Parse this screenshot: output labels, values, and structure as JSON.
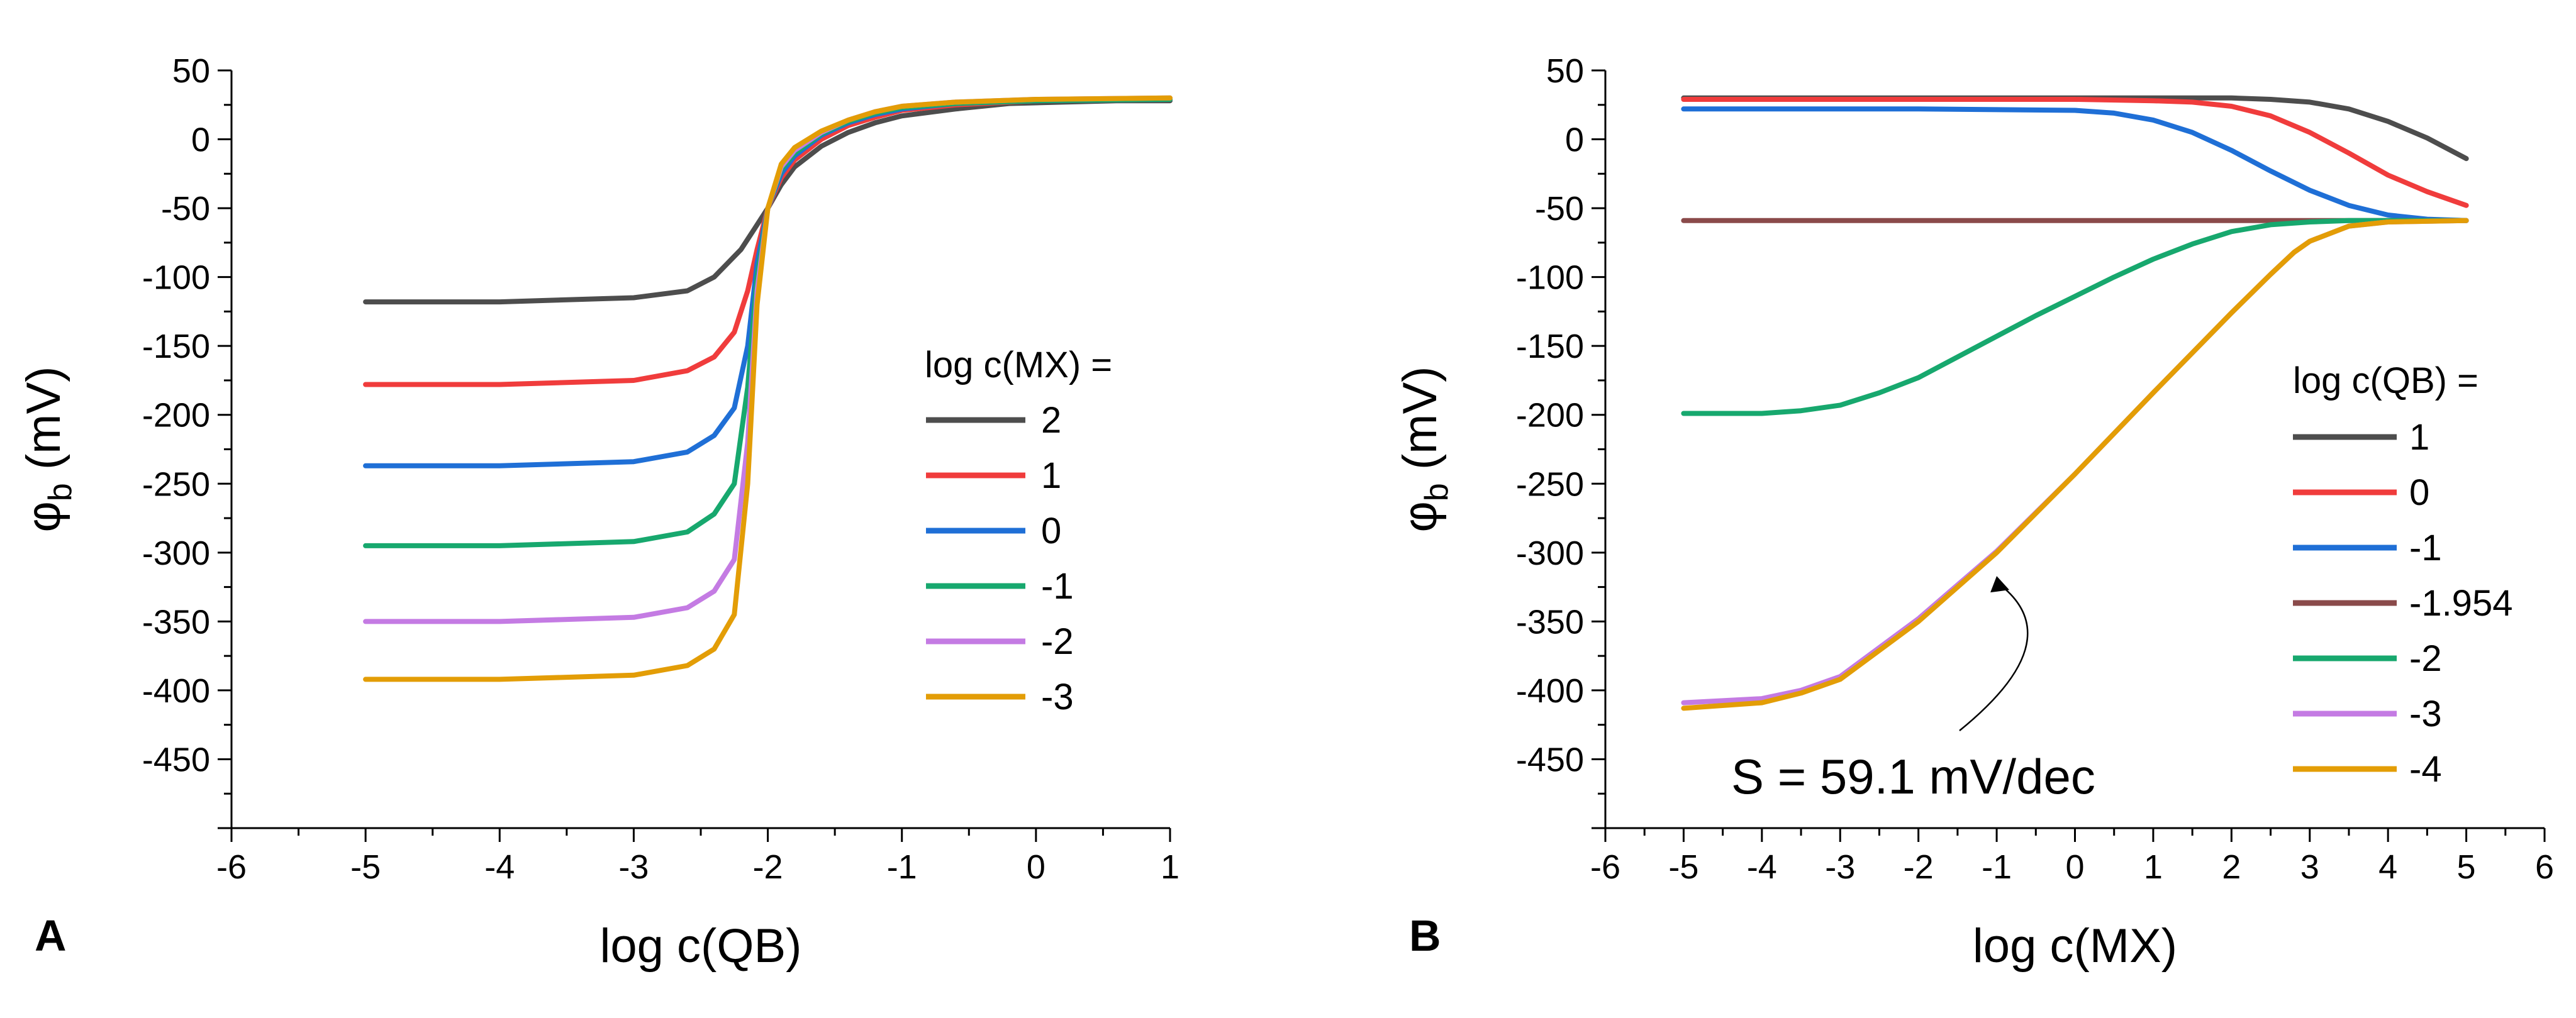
{
  "chart_data": [
    {
      "panel": "A",
      "type": "line",
      "xlabel": "log c(QB)",
      "ylabel": "φ",
      "ylabel_sub": "b",
      "ylabel_unit": " (mV)",
      "xlim": [
        -6,
        1
      ],
      "ylim": [
        -500,
        50
      ],
      "xticks": [
        -6,
        -5,
        -4,
        -3,
        -2,
        -1,
        0,
        1
      ],
      "yticks": [
        50,
        0,
        -50,
        -100,
        -150,
        -200,
        -250,
        -300,
        -350,
        -400,
        -450
      ],
      "grid": false,
      "legend_title": "log c(MX) =",
      "legend_position": "center-right",
      "series": [
        {
          "name": "2",
          "color": "#4d4d4d",
          "x": [
            -5,
            -4,
            -3,
            -2.6,
            -2.4,
            -2.2,
            -2.1,
            -2.0,
            -1.9,
            -1.8,
            -1.6,
            -1.4,
            -1.2,
            -1.0,
            -0.6,
            -0.2,
            0.2,
            0.6,
            1.0
          ],
          "y": [
            -118,
            -118,
            -115,
            -110,
            -100,
            -80,
            -65,
            -50,
            -33,
            -20,
            -5,
            5,
            12,
            17,
            22,
            26,
            27,
            28,
            28
          ]
        },
        {
          "name": "1",
          "color": "#f03c3c",
          "x": [
            -5,
            -4,
            -3,
            -2.6,
            -2.4,
            -2.25,
            -2.15,
            -2.08,
            -2.0,
            -1.9,
            -1.8,
            -1.6,
            -1.4,
            -1.2,
            -1.0,
            -0.6,
            0,
            1.0
          ],
          "y": [
            -178,
            -178,
            -175,
            -168,
            -158,
            -140,
            -110,
            -80,
            -50,
            -28,
            -15,
            0,
            10,
            16,
            21,
            25,
            28,
            29
          ]
        },
        {
          "name": "0",
          "color": "#1f6fd6",
          "x": [
            -5,
            -4,
            -3,
            -2.6,
            -2.4,
            -2.25,
            -2.15,
            -2.08,
            -2.0,
            -1.9,
            -1.8,
            -1.6,
            -1.4,
            -1.2,
            -1.0,
            -0.6,
            0,
            1.0
          ],
          "y": [
            -237,
            -237,
            -234,
            -227,
            -215,
            -195,
            -150,
            -90,
            -50,
            -25,
            -12,
            3,
            12,
            18,
            22,
            26,
            28,
            29
          ]
        },
        {
          "name": "-1",
          "color": "#17a86e",
          "x": [
            -5,
            -4,
            -3,
            -2.6,
            -2.4,
            -2.25,
            -2.15,
            -2.08,
            -2.0,
            -1.9,
            -1.8,
            -1.6,
            -1.4,
            -1.2,
            -1.0,
            -0.6,
            0,
            1.0
          ],
          "y": [
            -295,
            -295,
            -292,
            -285,
            -272,
            -250,
            -180,
            -100,
            -50,
            -22,
            -10,
            4,
            13,
            19,
            23,
            26,
            28,
            29
          ]
        },
        {
          "name": "-2",
          "color": "#c47be3",
          "x": [
            -5,
            -4,
            -3,
            -2.6,
            -2.4,
            -2.25,
            -2.15,
            -2.08,
            -2.0,
            -1.9,
            -1.8,
            -1.6,
            -1.4,
            -1.2,
            -1.0,
            -0.6,
            0,
            1.0
          ],
          "y": [
            -350,
            -350,
            -347,
            -340,
            -328,
            -305,
            -220,
            -110,
            -50,
            -20,
            -8,
            5,
            14,
            20,
            24,
            27,
            29,
            30
          ]
        },
        {
          "name": "-3",
          "color": "#e39d06",
          "x": [
            -5,
            -4,
            -3,
            -2.6,
            -2.4,
            -2.25,
            -2.15,
            -2.08,
            -2.0,
            -1.9,
            -1.8,
            -1.6,
            -1.4,
            -1.2,
            -1.0,
            -0.6,
            0,
            1.0
          ],
          "y": [
            -392,
            -392,
            -389,
            -382,
            -370,
            -345,
            -250,
            -120,
            -50,
            -18,
            -6,
            6,
            14,
            20,
            24,
            27,
            29,
            30
          ]
        }
      ]
    },
    {
      "panel": "B",
      "type": "line",
      "xlabel": "log c(MX)",
      "ylabel": "φ",
      "ylabel_sub": "b",
      "ylabel_unit": " (mV)",
      "xlim": [
        -6,
        6
      ],
      "ylim": [
        -500,
        50
      ],
      "xticks": [
        -6,
        -5,
        -4,
        -3,
        -2,
        -1,
        0,
        1,
        2,
        3,
        4,
        5,
        6
      ],
      "yticks": [
        50,
        0,
        -50,
        -100,
        -150,
        -200,
        -250,
        -300,
        -350,
        -400,
        -450
      ],
      "grid": false,
      "legend_title": "log c(QB) =",
      "legend_position": "right",
      "annotation": {
        "text": "S = 59.1 mV/dec",
        "target_x": -1.0,
        "target_y": -307
      },
      "series": [
        {
          "name": "1",
          "color": "#4d4d4d",
          "x": [
            -5,
            -2,
            0,
            1,
            2,
            2.5,
            3,
            3.5,
            4,
            4.5,
            5
          ],
          "y": [
            30,
            30,
            30,
            30,
            30,
            29,
            27,
            22,
            13,
            1,
            -14
          ]
        },
        {
          "name": "0",
          "color": "#f03c3c",
          "x": [
            -5,
            -2,
            0,
            1,
            1.5,
            2,
            2.5,
            3,
            3.5,
            4,
            4.5,
            5
          ],
          "y": [
            29,
            29,
            29,
            28,
            27,
            24,
            17,
            5,
            -10,
            -26,
            -38,
            -48
          ]
        },
        {
          "name": "-1",
          "color": "#1f6fd6",
          "x": [
            -5,
            -2,
            0,
            0.5,
            1,
            1.5,
            2,
            2.5,
            3,
            3.5,
            4,
            4.5,
            5
          ],
          "y": [
            22,
            22,
            21,
            19,
            14,
            5,
            -8,
            -23,
            -37,
            -48,
            -55,
            -58,
            -59
          ]
        },
        {
          "name": "-1.954",
          "color": "#8a4a4a",
          "x": [
            -5,
            5
          ],
          "y": [
            -59,
            -59
          ]
        },
        {
          "name": "-2",
          "color": "#17a86e",
          "x": [
            -5,
            -4,
            -3.5,
            -3,
            -2.5,
            -2,
            -1.5,
            -1,
            -0.5,
            0,
            0.5,
            1,
            1.5,
            2,
            2.5,
            3,
            3.5,
            4,
            5
          ],
          "y": [
            -199,
            -199,
            -197,
            -193,
            -184,
            -173,
            -158,
            -143,
            -128,
            -114,
            -100,
            -87,
            -76,
            -67,
            -62,
            -60,
            -59,
            -59,
            -59
          ]
        },
        {
          "name": "-3",
          "color": "#c47be3",
          "x": [
            -5,
            -4,
            -3.5,
            -3,
            -2,
            -1,
            0,
            1,
            2,
            2.5,
            2.8,
            3,
            3.5,
            4,
            5
          ],
          "y": [
            -409,
            -406,
            -400,
            -390,
            -348,
            -299,
            -243,
            -184,
            -126,
            -98,
            -82,
            -74,
            -63,
            -60,
            -59
          ]
        },
        {
          "name": "-4",
          "color": "#e39d06",
          "x": [
            -5,
            -4,
            -3.5,
            -3,
            -2,
            -1,
            0,
            1,
            2,
            2.5,
            2.8,
            3,
            3.5,
            4,
            5
          ],
          "y": [
            -413,
            -409,
            -402,
            -392,
            -350,
            -300,
            -243,
            -184,
            -126,
            -98,
            -82,
            -74,
            -63,
            -60,
            -59
          ]
        }
      ]
    }
  ]
}
